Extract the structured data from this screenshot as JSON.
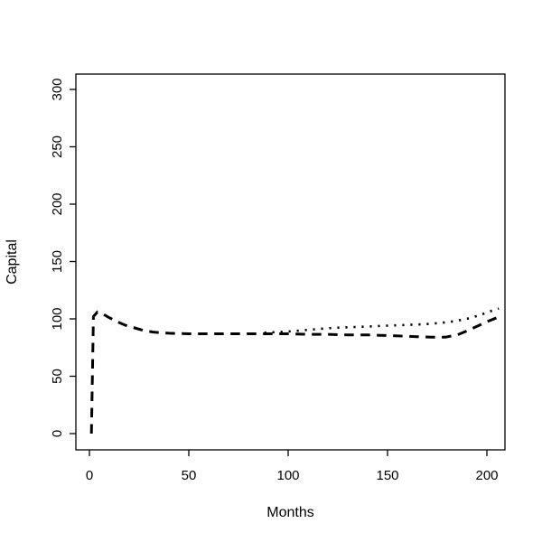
{
  "figure": {
    "background_color": "#ffffff",
    "foreground_color": "#000000"
  },
  "chart_data": {
    "type": "line",
    "title": "",
    "xlabel": "Months",
    "ylabel": "Capital",
    "x_ticks": [
      0,
      50,
      100,
      150,
      200
    ],
    "y_ticks": [
      0,
      50,
      100,
      150,
      200,
      250,
      300
    ],
    "xlim": [
      -7,
      209
    ],
    "ylim": [
      -14,
      313
    ],
    "grid": false,
    "legend": "none",
    "series": [
      {
        "name": "dashed-series",
        "style": "dashed",
        "color": "#000000",
        "linewidth": 3,
        "x": [
          1,
          2,
          4,
          7,
          10,
          14,
          18,
          22,
          27,
          32,
          40,
          50,
          60,
          70,
          80,
          90,
          100,
          110,
          120,
          130,
          140,
          150,
          158,
          165,
          172,
          179,
          185,
          190,
          195,
          200,
          205
        ],
        "y": [
          0,
          102,
          106,
          104,
          101,
          97.5,
          94.5,
          92.5,
          90,
          88.5,
          87.5,
          87,
          87,
          87,
          87,
          87,
          87,
          86.5,
          86.5,
          86,
          86,
          85.5,
          85,
          84.5,
          84,
          84,
          86,
          89.5,
          93.5,
          97.5,
          101
        ]
      },
      {
        "name": "dotted-series",
        "style": "dotted",
        "color": "#000000",
        "linewidth": 2.6,
        "x": [
          88,
          95,
          100,
          107,
          114,
          121,
          128,
          135,
          142,
          149,
          156,
          163,
          170,
          177,
          184,
          191,
          196,
          200,
          203,
          206
        ],
        "y": [
          88,
          88.5,
          89,
          90,
          91,
          92,
          92.5,
          93,
          93.5,
          94,
          94.5,
          95,
          95.5,
          96.5,
          98,
          100.5,
          103,
          105.5,
          107.5,
          109
        ]
      }
    ]
  }
}
